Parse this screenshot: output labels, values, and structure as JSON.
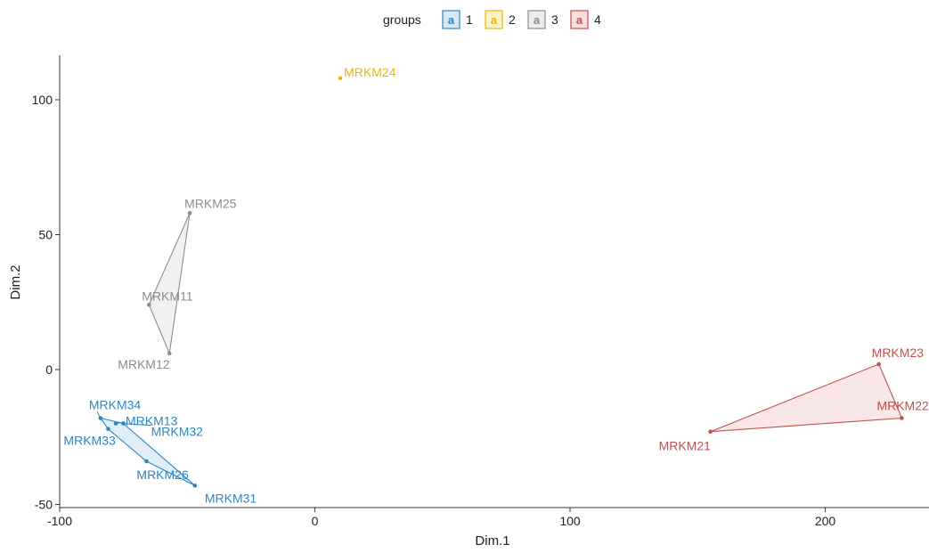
{
  "chart_data": {
    "type": "scatter",
    "xlabel": "Dim.1",
    "ylabel": "Dim.2",
    "xlim": [
      -100,
      240
    ],
    "ylim": [
      -50,
      115
    ],
    "x_ticks": [
      -100,
      0,
      100,
      200
    ],
    "y_ticks": [
      -50,
      0,
      50,
      100
    ],
    "x_tick_labels": [
      "-100",
      "0",
      "100",
      "200"
    ],
    "y_tick_labels": [
      "-50",
      "0",
      "50",
      "100"
    ],
    "grid": false,
    "legend": {
      "title": "groups",
      "position": "top",
      "entries": [
        {
          "label": "1",
          "glyph": "a"
        },
        {
          "label": "2",
          "glyph": "a"
        },
        {
          "label": "3",
          "glyph": "a"
        },
        {
          "label": "4",
          "glyph": "a"
        }
      ]
    },
    "colors": {
      "1": "#2e86c1",
      "2": "#e6b800",
      "3": "#8c8c8c",
      "4": "#c0504d"
    },
    "hull_fills": {
      "1": "#d6e8f5",
      "2": "#fbf0c8",
      "3": "#ececec",
      "4": "#f7dedd"
    },
    "points": [
      {
        "label": "MRKM34",
        "x": -84,
        "y": -18,
        "group": "1"
      },
      {
        "label": "MRKM13",
        "x": -78,
        "y": -20,
        "group": "1"
      },
      {
        "label": "MRKM33",
        "x": -81,
        "y": -22,
        "group": "1"
      },
      {
        "label": "MRKM32",
        "x": -75,
        "y": -20,
        "group": "1"
      },
      {
        "label": "MRKM26",
        "x": -66,
        "y": -34,
        "group": "1"
      },
      {
        "label": "MRKM31",
        "x": -47,
        "y": -43,
        "group": "1"
      },
      {
        "label": "MRKM24",
        "x": 10,
        "y": 108,
        "group": "2"
      },
      {
        "label": "MRKM25",
        "x": -49,
        "y": 58,
        "group": "3"
      },
      {
        "label": "MRKM11",
        "x": -65,
        "y": 24,
        "group": "3"
      },
      {
        "label": "MRKM12",
        "x": -57,
        "y": 6,
        "group": "3"
      },
      {
        "label": "MRKM23",
        "x": 221,
        "y": 2,
        "group": "4"
      },
      {
        "label": "MRKM22",
        "x": 230,
        "y": -18,
        "group": "4"
      },
      {
        "label": "MRKM21",
        "x": 155,
        "y": -23,
        "group": "4"
      }
    ]
  }
}
